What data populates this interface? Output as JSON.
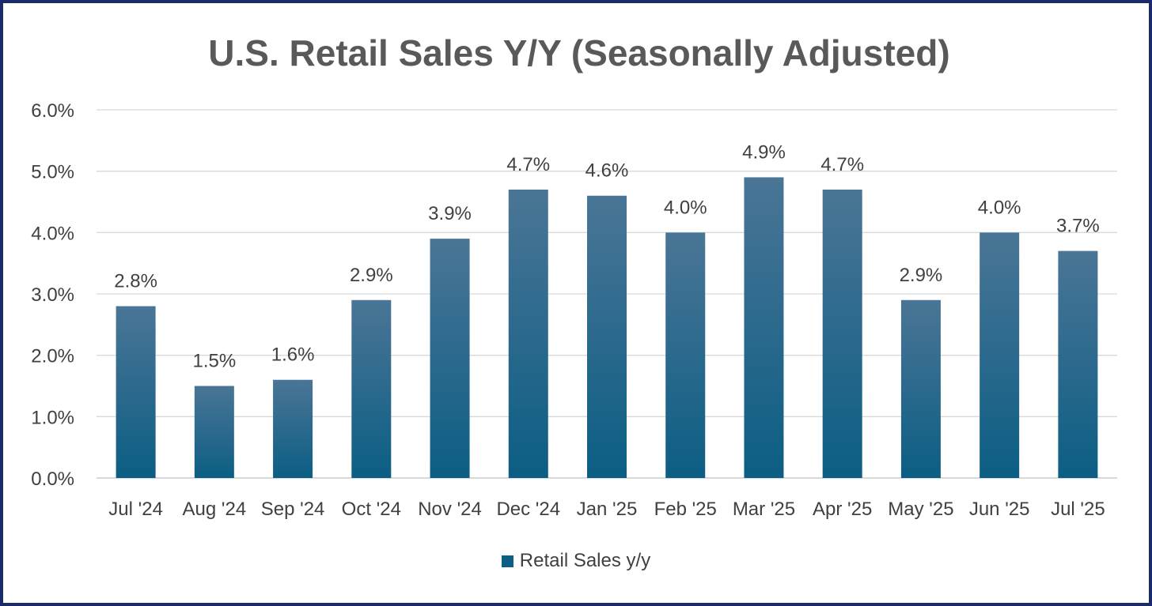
{
  "chart_data": {
    "type": "bar",
    "title": "U.S. Retail Sales Y/Y (Seasonally Adjusted)",
    "categories": [
      "Jul '24",
      "Aug '24",
      "Sep '24",
      "Oct '24",
      "Nov '24",
      "Dec '24",
      "Jan '25",
      "Feb '25",
      "Mar '25",
      "Apr '25",
      "May '25",
      "Jun '25",
      "Jul '25"
    ],
    "series": [
      {
        "name": "Retail Sales y/y",
        "values": [
          2.8,
          1.5,
          1.6,
          2.9,
          3.9,
          4.7,
          4.6,
          4.0,
          4.9,
          4.7,
          2.9,
          4.0,
          3.7
        ],
        "labels": [
          "2.8%",
          "1.5%",
          "1.6%",
          "2.9%",
          "3.9%",
          "4.7%",
          "4.6%",
          "4.0%",
          "4.9%",
          "4.7%",
          "2.9%",
          "4.0%",
          "3.7%"
        ]
      }
    ],
    "yticks": [
      "0.0%",
      "1.0%",
      "2.0%",
      "3.0%",
      "4.0%",
      "5.0%",
      "6.0%"
    ],
    "ylim": [
      0,
      6
    ],
    "xlabel": "",
    "ylabel": "",
    "grid": true,
    "legend_position": "bottom",
    "colors": {
      "bar_top": "#4a7596",
      "bar_bottom": "#0c5e84",
      "grid": "#d9d9d9",
      "frame": "#1a2a6b",
      "text": "#404040",
      "title": "#595959"
    }
  }
}
